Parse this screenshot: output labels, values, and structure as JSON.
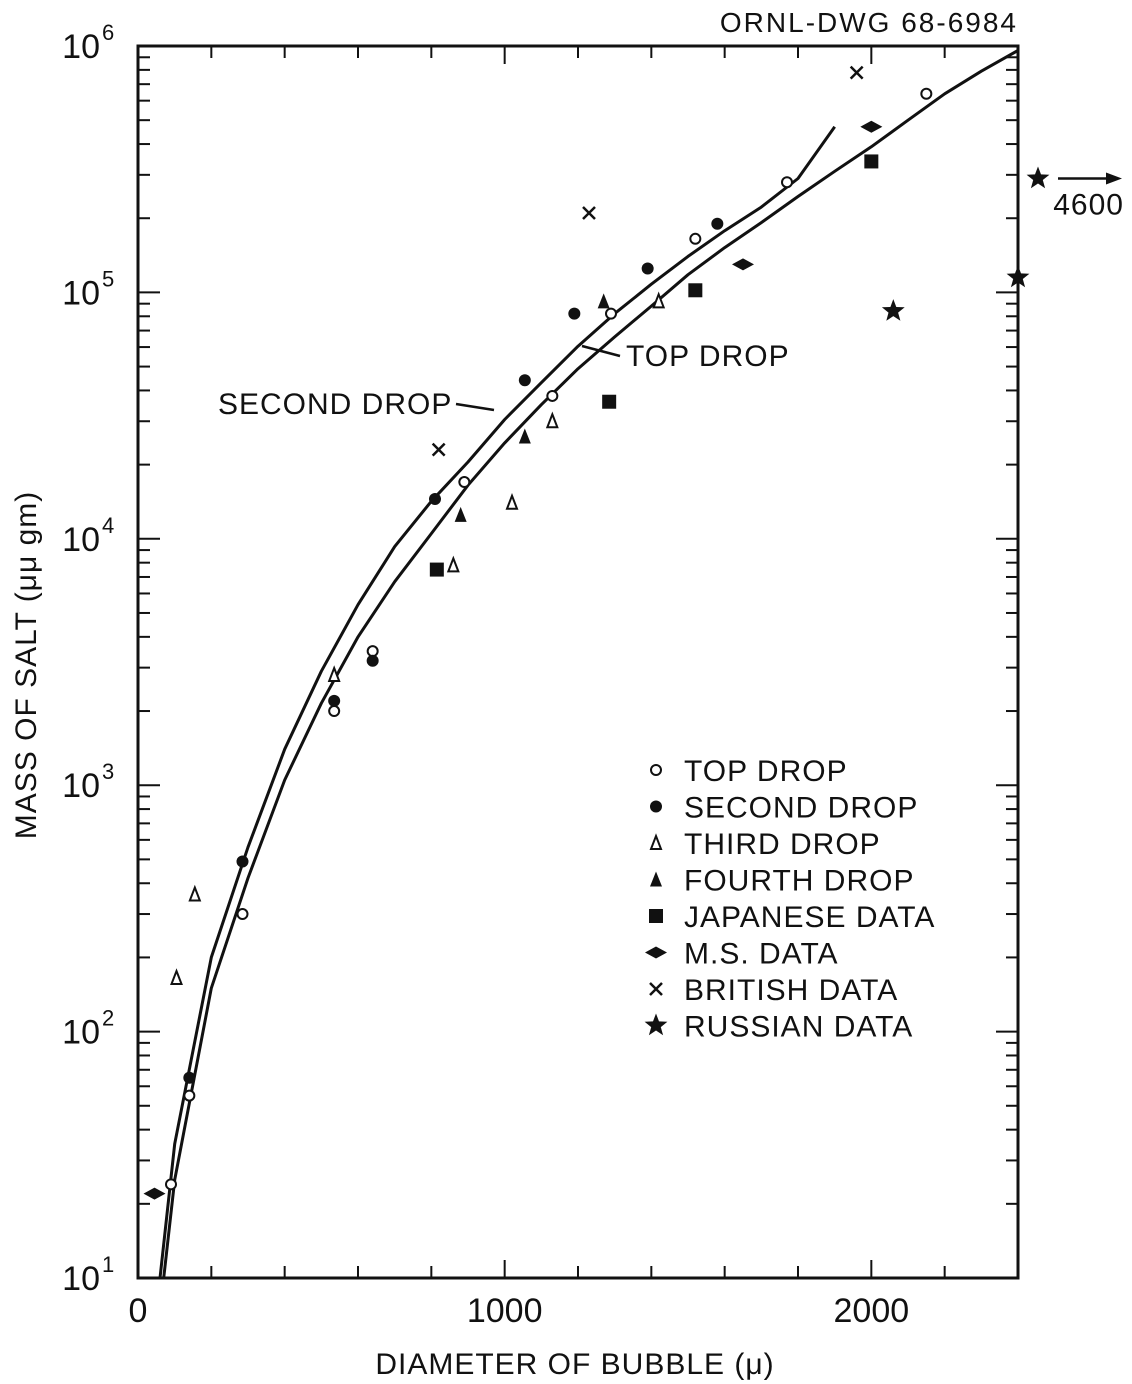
{
  "drawing_number": "ORNL-DWG 68-6984",
  "chart_data": {
    "type": "scatter",
    "xlabel": "DIAMETER OF BUBBLE (μ)",
    "ylabel": "MASS OF SALT (μμ gm)",
    "xlim": [
      0,
      2400
    ],
    "ylim": [
      10,
      1000000
    ],
    "yscale": "log",
    "x_ticks": [
      {
        "value": 0,
        "label": "0"
      },
      {
        "value": 1000,
        "label": "1000"
      },
      {
        "value": 2000,
        "label": "2000"
      }
    ],
    "y_ticks": [
      {
        "value": 10,
        "base": "10",
        "exp": "1"
      },
      {
        "value": 100,
        "base": "10",
        "exp": "2"
      },
      {
        "value": 1000,
        "base": "10",
        "exp": "3"
      },
      {
        "value": 10000,
        "base": "10",
        "exp": "4"
      },
      {
        "value": 100000,
        "base": "10",
        "exp": "5"
      },
      {
        "value": 1000000,
        "base": "10",
        "exp": "6"
      }
    ],
    "grid": false,
    "legend_position": "bottom-right",
    "series": [
      {
        "name": "TOP DROP",
        "marker": "open-circle",
        "points": [
          [
            90,
            24
          ],
          [
            140,
            55
          ],
          [
            285,
            300
          ],
          [
            535,
            2000
          ],
          [
            640,
            3500
          ],
          [
            890,
            17000
          ],
          [
            1130,
            38000
          ],
          [
            1290,
            82000
          ],
          [
            1520,
            165000
          ],
          [
            1770,
            280000
          ],
          [
            2150,
            640000
          ]
        ]
      },
      {
        "name": "SECOND DROP",
        "marker": "filled-circle",
        "points": [
          [
            140,
            65
          ],
          [
            285,
            490
          ],
          [
            535,
            2200
          ],
          [
            640,
            3200
          ],
          [
            810,
            14500
          ],
          [
            1055,
            44000
          ],
          [
            1190,
            82000
          ],
          [
            1390,
            125000
          ],
          [
            1580,
            190000
          ]
        ]
      },
      {
        "name": "THIRD DROP",
        "marker": "open-triangle",
        "points": [
          [
            105,
            165
          ],
          [
            155,
            360
          ],
          [
            535,
            2800
          ],
          [
            860,
            7800
          ],
          [
            1020,
            14000
          ],
          [
            1130,
            30000
          ],
          [
            1420,
            92000
          ]
        ]
      },
      {
        "name": "FOURTH DROP",
        "marker": "filled-triangle",
        "points": [
          [
            880,
            12500
          ],
          [
            1055,
            26000
          ],
          [
            1270,
            92000
          ]
        ]
      },
      {
        "name": "JAPANESE DATA",
        "marker": "filled-square",
        "points": [
          [
            815,
            7500
          ],
          [
            1285,
            36000
          ],
          [
            1520,
            102000
          ],
          [
            2000,
            340000
          ]
        ]
      },
      {
        "name": "M.S. DATA",
        "marker": "filled-diamond",
        "points": [
          [
            45,
            22
          ],
          [
            1650,
            130000
          ],
          [
            2000,
            470000
          ]
        ]
      },
      {
        "name": "BRITISH DATA",
        "marker": "cross",
        "points": [
          [
            820,
            23000
          ],
          [
            1230,
            210000
          ],
          [
            1960,
            780000
          ]
        ]
      },
      {
        "name": "RUSSIAN DATA",
        "marker": "star",
        "points": [
          [
            2060,
            84000
          ],
          [
            2400,
            115000
          ]
        ]
      }
    ],
    "offscale_point": {
      "marker": "star",
      "y": 290000,
      "label": "4600"
    },
    "curves": [
      {
        "name": "SECOND DROP",
        "label": "SECOND DROP",
        "points": [
          [
            60,
            10
          ],
          [
            100,
            35
          ],
          [
            200,
            200
          ],
          [
            300,
            560
          ],
          [
            400,
            1400
          ],
          [
            500,
            2900
          ],
          [
            600,
            5400
          ],
          [
            700,
            9300
          ],
          [
            800,
            14200
          ],
          [
            900,
            20500
          ],
          [
            1000,
            30500
          ],
          [
            1100,
            43000
          ],
          [
            1200,
            60500
          ],
          [
            1300,
            82000
          ],
          [
            1400,
            108000
          ],
          [
            1500,
            140000
          ],
          [
            1600,
            178000
          ],
          [
            1700,
            222000
          ],
          [
            1800,
            290000
          ],
          [
            1900,
            470000
          ]
        ]
      },
      {
        "name": "TOP DROP",
        "label": "TOP DROP",
        "points": [
          [
            70,
            10
          ],
          [
            100,
            25
          ],
          [
            200,
            150
          ],
          [
            300,
            420
          ],
          [
            400,
            1050
          ],
          [
            500,
            2150
          ],
          [
            600,
            4000
          ],
          [
            700,
            6700
          ],
          [
            800,
            10500
          ],
          [
            900,
            16500
          ],
          [
            1000,
            24500
          ],
          [
            1100,
            35000
          ],
          [
            1200,
            49000
          ],
          [
            1300,
            66000
          ],
          [
            1400,
            88000
          ],
          [
            1500,
            118000
          ],
          [
            1600,
            152000
          ],
          [
            1700,
            192000
          ],
          [
            1800,
            245000
          ],
          [
            1900,
            310000
          ],
          [
            2000,
            390000
          ],
          [
            2100,
            500000
          ],
          [
            2200,
            640000
          ],
          [
            2300,
            790000
          ],
          [
            2400,
            960000
          ]
        ]
      }
    ],
    "legend": [
      {
        "marker": "open-circle",
        "label": "TOP DROP"
      },
      {
        "marker": "filled-circle",
        "label": "SECOND DROP"
      },
      {
        "marker": "open-triangle",
        "label": "THIRD DROP"
      },
      {
        "marker": "filled-triangle",
        "label": "FOURTH DROP"
      },
      {
        "marker": "filled-square",
        "label": "JAPANESE DATA"
      },
      {
        "marker": "filled-diamond",
        "label": "M.S. DATA"
      },
      {
        "marker": "cross",
        "label": "BRITISH DATA"
      },
      {
        "marker": "star",
        "label": "RUSSIAN DATA"
      }
    ]
  }
}
